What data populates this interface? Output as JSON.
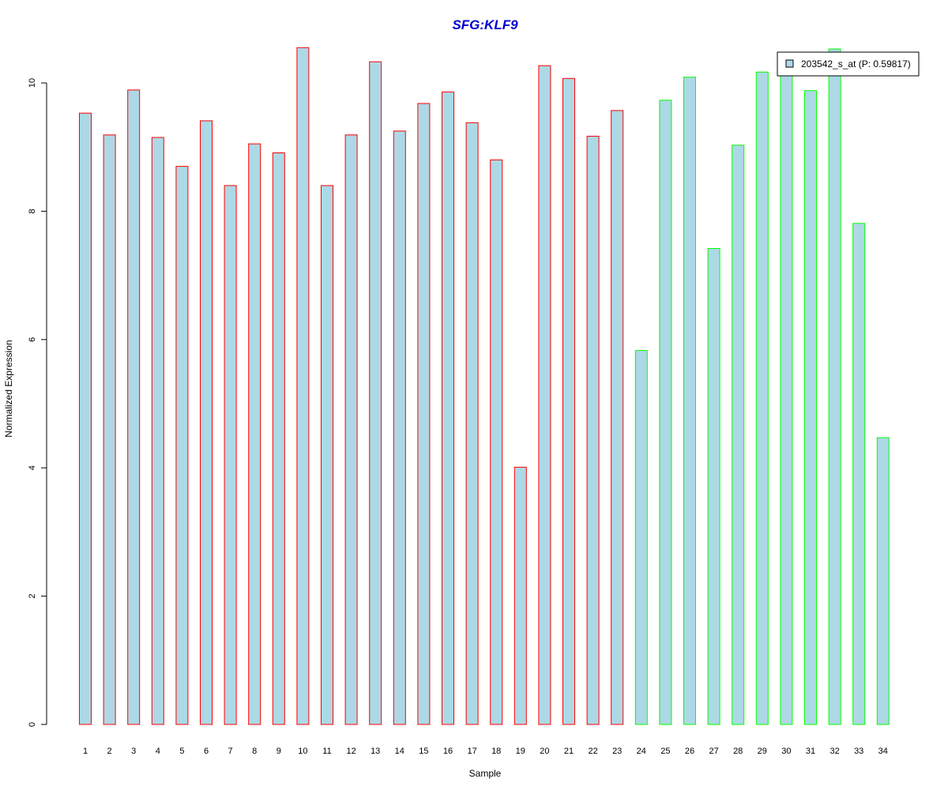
{
  "chart_data": {
    "type": "bar",
    "title": "SFG:KLF9",
    "xlabel": "Sample",
    "ylabel": "Normalized Expression",
    "ylim": [
      0,
      10.5
    ],
    "yticks": [
      0,
      2,
      4,
      6,
      8,
      10
    ],
    "grid": false,
    "legend": {
      "placement": "top-right",
      "entries": [
        {
          "label": "203542_s_at (P: 0.59817)",
          "fill": "#add8e6"
        }
      ]
    },
    "categories": [
      "1",
      "2",
      "3",
      "4",
      "5",
      "6",
      "7",
      "8",
      "9",
      "10",
      "11",
      "12",
      "13",
      "14",
      "15",
      "16",
      "17",
      "18",
      "19",
      "20",
      "21",
      "22",
      "23",
      "24",
      "25",
      "26",
      "27",
      "28",
      "29",
      "30",
      "31",
      "32",
      "33",
      "34"
    ],
    "series": [
      {
        "name": "203542_s_at (P: 0.59817)",
        "values": [
          9.53,
          9.19,
          9.89,
          9.15,
          8.7,
          9.41,
          8.4,
          9.05,
          8.91,
          10.55,
          8.4,
          9.19,
          10.33,
          9.25,
          9.68,
          9.86,
          9.38,
          8.8,
          4.01,
          10.27,
          10.07,
          9.17,
          9.57,
          5.83,
          9.73,
          10.09,
          7.42,
          9.03,
          10.17,
          10.15,
          9.88,
          10.53,
          7.81,
          4.47
        ]
      }
    ],
    "bar_fill": "#add8e6",
    "group_colors": [
      "#ff0000",
      "#00ff00"
    ],
    "bar_border_groups": [
      "#ff0000",
      "#ff0000",
      "#ff0000",
      "#ff0000",
      "#ff0000",
      "#ff0000",
      "#ff0000",
      "#ff0000",
      "#ff0000",
      "#ff0000",
      "#ff0000",
      "#ff0000",
      "#ff0000",
      "#ff0000",
      "#ff0000",
      "#ff0000",
      "#ff0000",
      "#ff0000",
      "#ff0000",
      "#ff0000",
      "#ff0000",
      "#ff0000",
      "#ff0000",
      "#00ff00",
      "#00ff00",
      "#00ff00",
      "#00ff00",
      "#00ff00",
      "#00ff00",
      "#00ff00",
      "#00ff00",
      "#00ff00",
      "#00ff00",
      "#00ff00"
    ],
    "title_color": "#0000cc"
  }
}
